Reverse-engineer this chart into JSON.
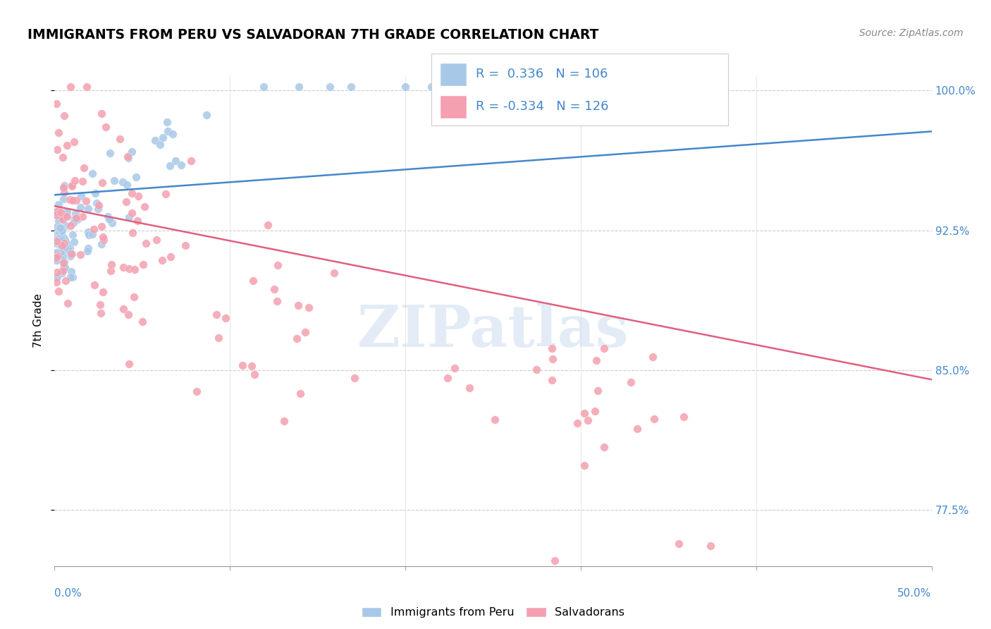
{
  "title": "IMMIGRANTS FROM PERU VS SALVADORAN 7TH GRADE CORRELATION CHART",
  "source_text": "Source: ZipAtlas.com",
  "ylabel": "7th Grade",
  "xmin": 0.0,
  "xmax": 0.5,
  "ymin": 0.745,
  "ymax": 1.008,
  "blue_color": "#a8c8e8",
  "pink_color": "#f4a0b0",
  "trend_blue": "#4488cc",
  "trend_pink": "#e06080",
  "blue_trend_x": [
    0.0,
    0.5
  ],
  "blue_trend_y": [
    0.944,
    0.978
  ],
  "pink_trend_x": [
    0.0,
    0.5
  ],
  "pink_trend_y": [
    0.938,
    0.845
  ],
  "watermark_text": "ZIPatlas",
  "legend_label1": "Immigrants from Peru",
  "legend_label2": "Salvadorans",
  "yticks": [
    0.775,
    0.85,
    0.925,
    1.0
  ],
  "ytick_labels": [
    "77.5%",
    "85.0%",
    "92.5%",
    "100.0%"
  ],
  "xtick_labels_color": "#4488cc",
  "yaxis_color": "#4488cc"
}
